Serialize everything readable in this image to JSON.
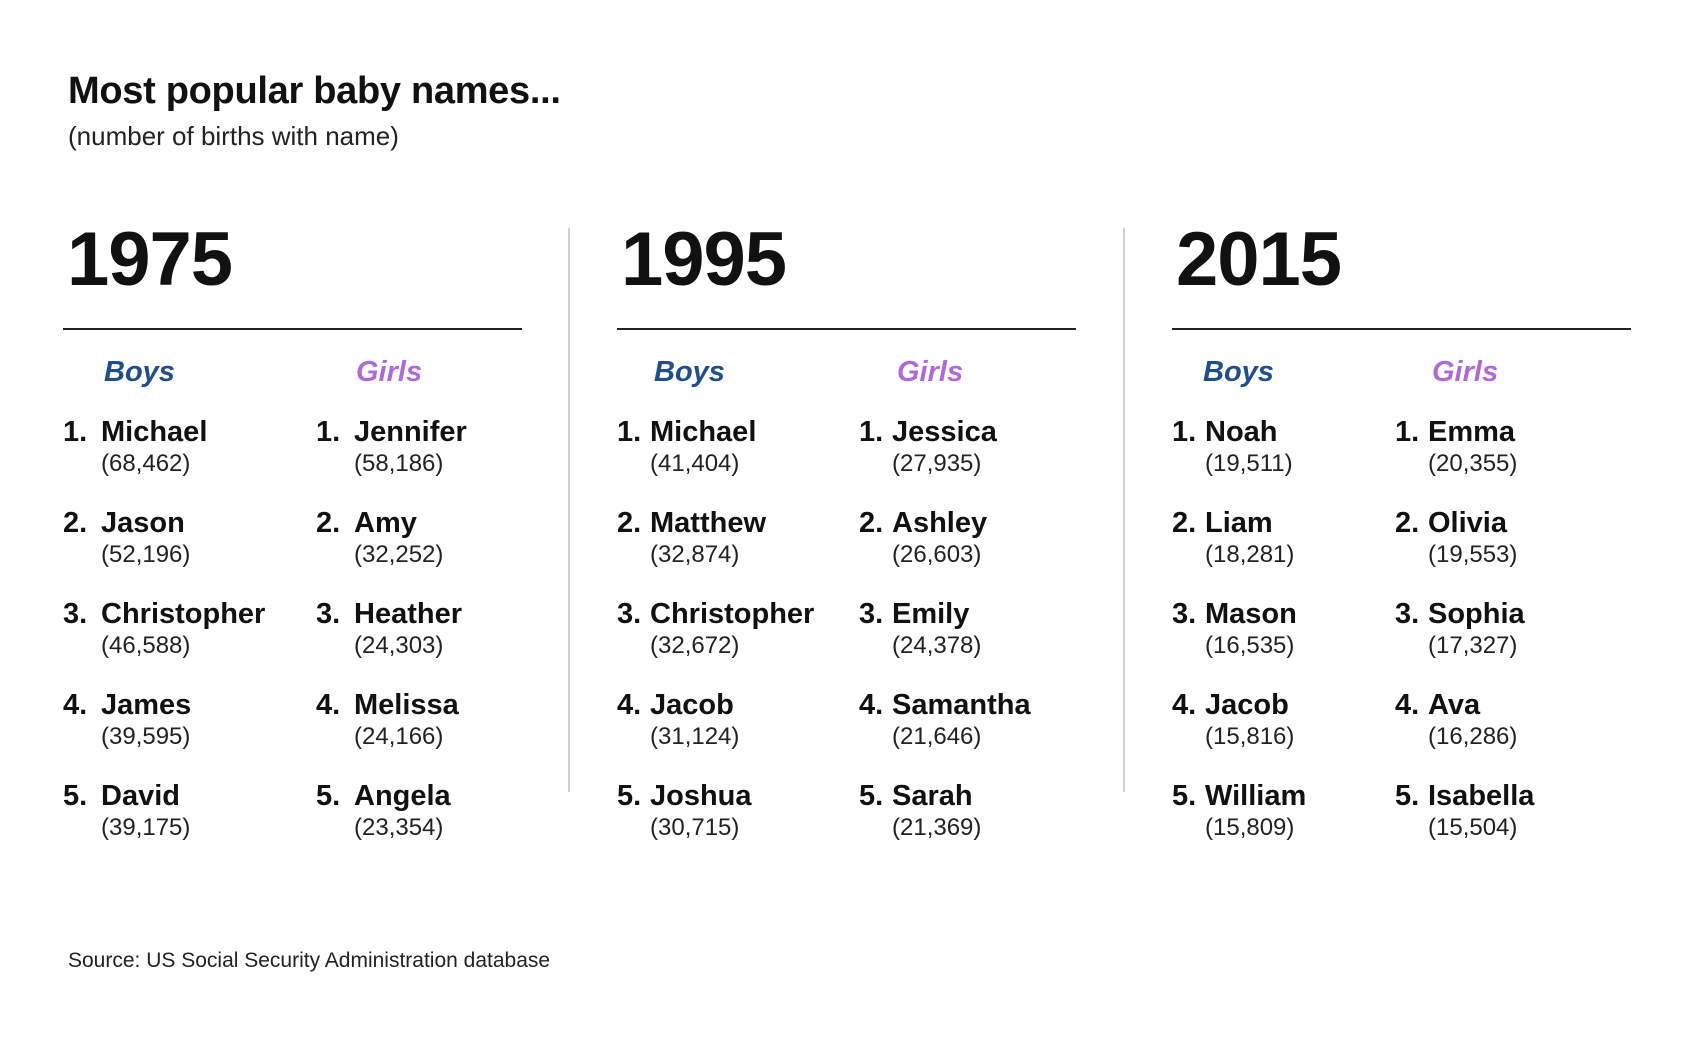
{
  "chart_data": {
    "type": "table",
    "title": "Most popular baby names...",
    "subtitle": "(number of births with name)",
    "source": "Source: US Social Security Administration database",
    "colors": {
      "boys": "#1f4e8c",
      "girls": "#b06ad8",
      "text": "#111111",
      "rule": "#222222",
      "divider": "#cfcfcf"
    },
    "panels": [
      {
        "year": "1975",
        "groups": [
          {
            "label": "Boys",
            "entries": [
              {
                "rank": "1.",
                "name": "Michael",
                "count": "(68,462)",
                "value": 68462
              },
              {
                "rank": "2.",
                "name": "Jason",
                "count": "(52,196)",
                "value": 52196
              },
              {
                "rank": "3.",
                "name": "Christopher",
                "count": "(46,588)",
                "value": 46588
              },
              {
                "rank": "4.",
                "name": "James",
                "count": "(39,595)",
                "value": 39595
              },
              {
                "rank": "5.",
                "name": "David",
                "count": "(39,175)",
                "value": 39175
              }
            ]
          },
          {
            "label": "Girls",
            "entries": [
              {
                "rank": "1.",
                "name": "Jennifer",
                "count": "(58,186)",
                "value": 58186
              },
              {
                "rank": "2.",
                "name": "Amy",
                "count": "(32,252)",
                "value": 32252
              },
              {
                "rank": "3.",
                "name": "Heather",
                "count": "(24,303)",
                "value": 24303
              },
              {
                "rank": "4.",
                "name": "Melissa",
                "count": "(24,166)",
                "value": 24166
              },
              {
                "rank": "5.",
                "name": "Angela",
                "count": "(23,354)",
                "value": 23354
              }
            ]
          }
        ]
      },
      {
        "year": "1995",
        "groups": [
          {
            "label": "Boys",
            "entries": [
              {
                "rank": "1.",
                "name": "Michael",
                "count": "(41,404)",
                "value": 41404
              },
              {
                "rank": "2.",
                "name": "Matthew",
                "count": "(32,874)",
                "value": 32874
              },
              {
                "rank": "3.",
                "name": "Christopher",
                "count": "(32,672)",
                "value": 32672
              },
              {
                "rank": "4.",
                "name": "Jacob",
                "count": "(31,124)",
                "value": 31124
              },
              {
                "rank": "5.",
                "name": "Joshua",
                "count": "(30,715)",
                "value": 30715
              }
            ]
          },
          {
            "label": "Girls",
            "entries": [
              {
                "rank": "1.",
                "name": "Jessica",
                "count": "(27,935)",
                "value": 27935
              },
              {
                "rank": "2.",
                "name": "Ashley",
                "count": "(26,603)",
                "value": 26603
              },
              {
                "rank": "3.",
                "name": "Emily",
                "count": "(24,378)",
                "value": 24378
              },
              {
                "rank": "4.",
                "name": "Samantha",
                "count": "(21,646)",
                "value": 21646
              },
              {
                "rank": "5.",
                "name": "Sarah",
                "count": "(21,369)",
                "value": 21369
              }
            ]
          }
        ]
      },
      {
        "year": "2015",
        "groups": [
          {
            "label": "Boys",
            "entries": [
              {
                "rank": "1.",
                "name": "Noah",
                "count": "(19,511)",
                "value": 19511
              },
              {
                "rank": "2.",
                "name": "Liam",
                "count": "(18,281)",
                "value": 18281
              },
              {
                "rank": "3.",
                "name": "Mason",
                "count": "(16,535)",
                "value": 16535
              },
              {
                "rank": "4.",
                "name": "Jacob",
                "count": "(15,816)",
                "value": 15816
              },
              {
                "rank": "5.",
                "name": "William",
                "count": "(15,809)",
                "value": 15809
              }
            ]
          },
          {
            "label": "Girls",
            "entries": [
              {
                "rank": "1.",
                "name": "Emma",
                "count": "(20,355)",
                "value": 20355
              },
              {
                "rank": "2.",
                "name": "Olivia",
                "count": "(19,553)",
                "value": 19553
              },
              {
                "rank": "3.",
                "name": "Sophia",
                "count": "(17,327)",
                "value": 17327
              },
              {
                "rank": "4.",
                "name": "Ava",
                "count": "(16,286)",
                "value": 16286
              },
              {
                "rank": "5.",
                "name": "Isabella",
                "count": "(15,504)",
                "value": 15504
              }
            ]
          }
        ]
      }
    ]
  }
}
